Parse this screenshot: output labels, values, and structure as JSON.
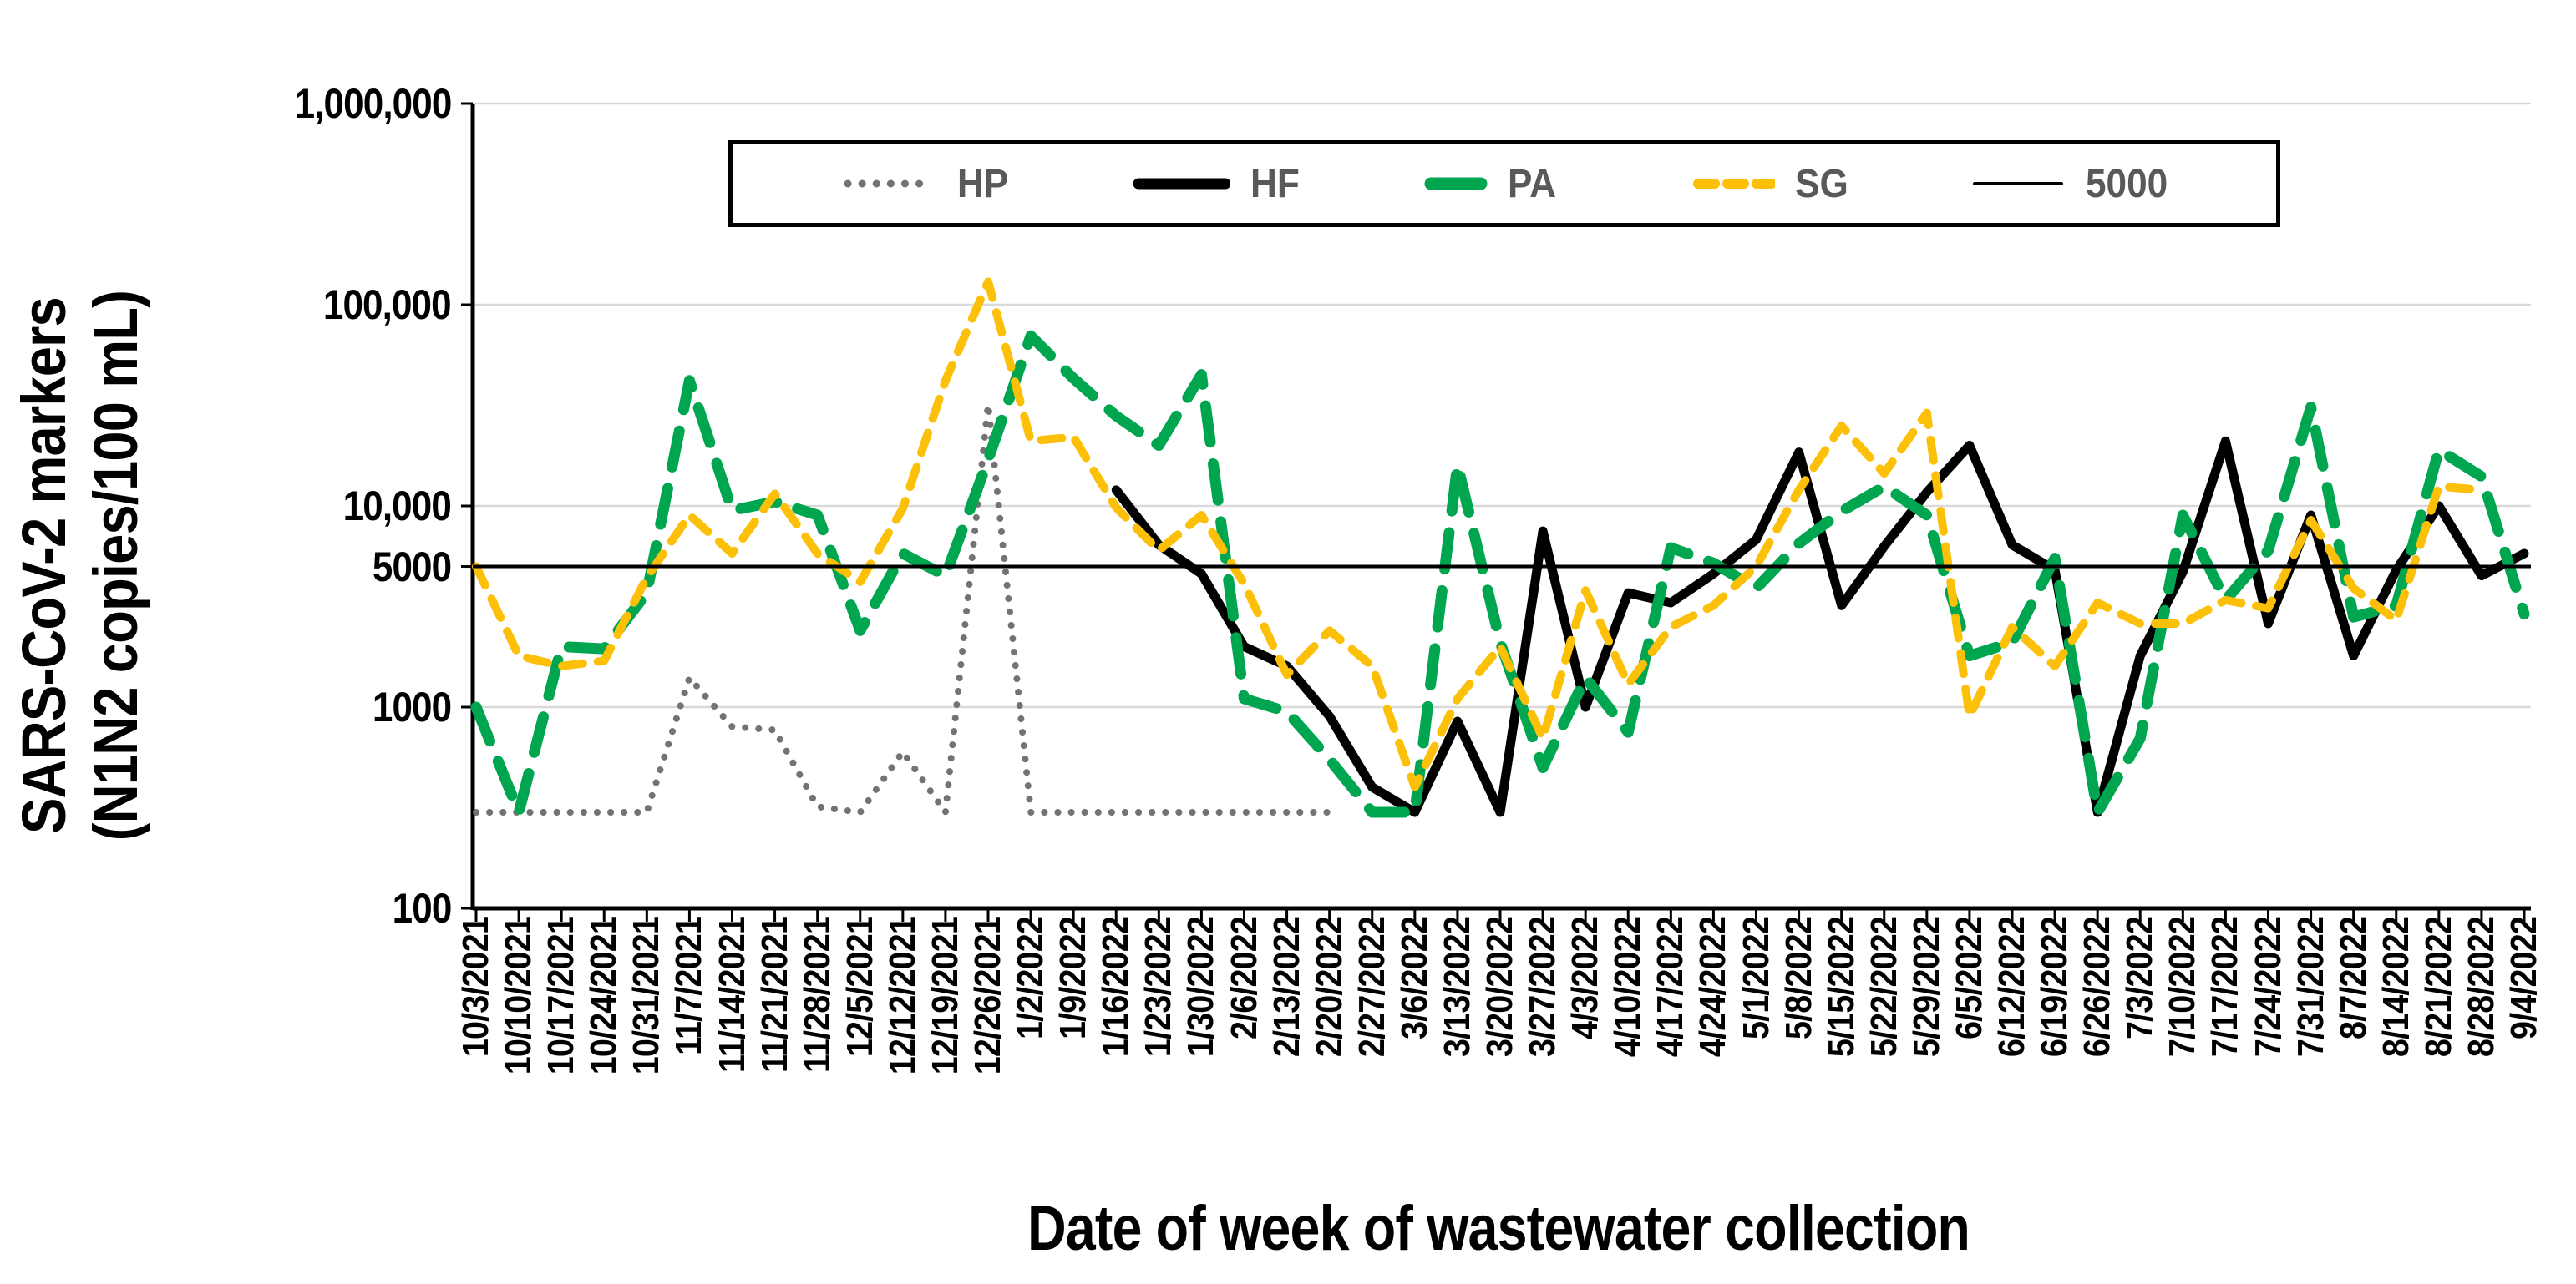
{
  "chart_data": {
    "type": "line",
    "title": "",
    "xlabel": "Date of week of wastewater collection",
    "ylabel_line1": "SARS-CoV-2 markers",
    "ylabel_line2": "(N1N2 copies/100 mL)",
    "y_scale": "log",
    "ylim": [
      100,
      1000000
    ],
    "grid": "horizontal-decades",
    "legend_position": "top-inside",
    "colors": {
      "grid": "#d9d9d9",
      "axis": "#000000",
      "legend_label": "#595959"
    },
    "y_ticks": [
      {
        "value": 1000000,
        "label": "1,000,000",
        "gridline": true
      },
      {
        "value": 100000,
        "label": "100,000",
        "gridline": true
      },
      {
        "value": 10000,
        "label": "10,000",
        "gridline": true
      },
      {
        "value": 5000,
        "label": "5000",
        "gridline": false
      },
      {
        "value": 1000,
        "label": "1000",
        "gridline": true
      },
      {
        "value": 100,
        "label": "100",
        "gridline": false
      }
    ],
    "x": [
      "10/3/2021",
      "10/10/2021",
      "10/17/2021",
      "10/24/2021",
      "10/31/2021",
      "11/7/2021",
      "11/14/2021",
      "11/21/2021",
      "11/28/2021",
      "12/5/2021",
      "12/12/2021",
      "12/19/2021",
      "12/26/2021",
      "1/2/2022",
      "1/9/2022",
      "1/16/2022",
      "1/23/2022",
      "1/30/2022",
      "2/6/2022",
      "2/13/2022",
      "2/20/2022",
      "2/27/2022",
      "3/6/2022",
      "3/13/2022",
      "3/20/2022",
      "3/27/2022",
      "4/3/2022",
      "4/10/2022",
      "4/17/2022",
      "4/24/2022",
      "5/1/2022",
      "5/8/2022",
      "5/15/2022",
      "5/22/2022",
      "5/29/2022",
      "6/5/2022",
      "6/12/2022",
      "6/19/2022",
      "6/26/2022",
      "7/3/2022",
      "7/10/2022",
      "7/17/2022",
      "7/24/2022",
      "7/31/2022",
      "8/7/2022",
      "8/14/2022",
      "8/21/2022",
      "8/28/2022",
      "9/4/2022"
    ],
    "series": [
      {
        "name": "HP",
        "color": "#737373",
        "style": "dotted",
        "values": [
          300,
          300,
          300,
          300,
          300,
          1400,
          800,
          770,
          320,
          300,
          600,
          300,
          32000,
          300,
          300,
          300,
          300,
          300,
          300,
          300,
          300,
          null,
          null,
          null,
          null,
          null,
          null,
          null,
          null,
          null,
          null,
          null,
          null,
          null,
          null,
          null,
          null,
          null,
          null,
          null,
          null,
          null,
          null,
          null,
          null,
          null,
          null,
          null,
          null
        ]
      },
      {
        "name": "HF",
        "color": "#000000",
        "style": "solid",
        "values": [
          null,
          null,
          null,
          null,
          null,
          null,
          null,
          null,
          null,
          null,
          null,
          null,
          null,
          null,
          null,
          12000,
          6400,
          4600,
          2000,
          1600,
          900,
          400,
          300,
          850,
          300,
          7500,
          1000,
          3700,
          3300,
          4600,
          6800,
          18500,
          3200,
          6300,
          11700,
          20000,
          6400,
          4800,
          300,
          1800,
          4700,
          21000,
          2600,
          9000,
          1800,
          4800,
          10000,
          4500,
          5800
        ]
      },
      {
        "name": "PA",
        "color": "#00a550",
        "style": "long-dash",
        "values": [
          1000,
          300,
          2000,
          1950,
          3700,
          42000,
          9500,
          10500,
          9000,
          2400,
          5800,
          4500,
          17000,
          70000,
          43000,
          28000,
          20000,
          45000,
          1100,
          950,
          550,
          300,
          300,
          16000,
          2100,
          500,
          1400,
          750,
          6200,
          5200,
          3900,
          6500,
          9400,
          12500,
          9000,
          1800,
          2100,
          5500,
          300,
          700,
          9000,
          3400,
          6000,
          31000,
          2800,
          3200,
          19000,
          14000,
          2900
        ]
      },
      {
        "name": "SG",
        "color": "#fcc008",
        "style": "dash",
        "values": [
          5000,
          1800,
          1600,
          1700,
          4400,
          9000,
          5800,
          11500,
          5800,
          4200,
          9700,
          42000,
          130000,
          21000,
          22000,
          9800,
          6000,
          9000,
          4100,
          1450,
          2400,
          1600,
          400,
          1100,
          2000,
          700,
          3800,
          1300,
          2500,
          3200,
          5000,
          12000,
          25000,
          14500,
          29000,
          900,
          2500,
          1600,
          3300,
          2600,
          2600,
          3400,
          3100,
          8500,
          3900,
          2700,
          12500,
          12000,
          null
        ]
      },
      {
        "name": "5000",
        "color": "#000000",
        "style": "thin-solid",
        "constant": 5000
      }
    ],
    "reference_line_value": 5000
  }
}
